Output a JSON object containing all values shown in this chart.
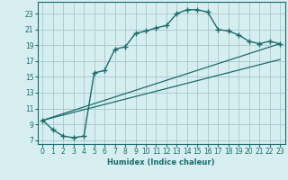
{
  "xlabel": "Humidex (Indice chaleur)",
  "xlim": [
    -0.5,
    23.5
  ],
  "ylim": [
    6.5,
    24.5
  ],
  "yticks": [
    7,
    9,
    11,
    13,
    15,
    17,
    19,
    21,
    23
  ],
  "xticks": [
    0,
    1,
    2,
    3,
    4,
    5,
    6,
    7,
    8,
    9,
    10,
    11,
    12,
    13,
    14,
    15,
    16,
    17,
    18,
    19,
    20,
    21,
    22,
    23
  ],
  "bg_color": "#d6eef0",
  "grid_color": "#aaccd0",
  "line_color": "#1a6b6b",
  "curve1_x": [
    0,
    1,
    2,
    3,
    4,
    5,
    6,
    7,
    8,
    9,
    10,
    11,
    12,
    13,
    14,
    15,
    16,
    17,
    18,
    19,
    20,
    21,
    22,
    23
  ],
  "curve1_y": [
    9.5,
    8.3,
    7.5,
    7.3,
    7.5,
    15.5,
    15.8,
    18.5,
    18.8,
    20.5,
    20.8,
    21.2,
    21.5,
    23.0,
    23.5,
    23.5,
    23.2,
    21.0,
    20.8,
    20.3,
    19.5,
    19.2,
    19.5,
    19.2
  ],
  "line2_x": [
    0,
    23
  ],
  "line2_y": [
    9.5,
    19.2
  ],
  "line3_x": [
    0,
    23
  ],
  "line3_y": [
    9.5,
    17.2
  ]
}
